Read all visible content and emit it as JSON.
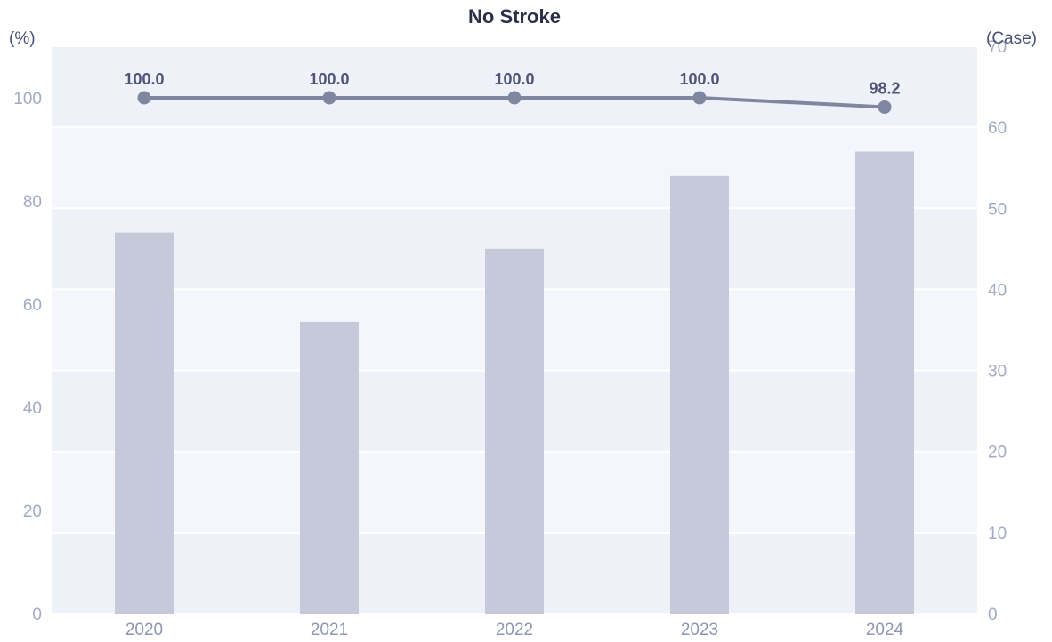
{
  "chart_data": {
    "type": "bar+line",
    "title": "No Stroke",
    "left_axis_unit": "(%)",
    "right_axis_unit": "(Case)",
    "categories": [
      "2020",
      "2021",
      "2022",
      "2023",
      "2024"
    ],
    "bars": {
      "axis": "right",
      "values": [
        47,
        36,
        45,
        54,
        57
      ],
      "color": "#c6c9d9"
    },
    "line": {
      "axis": "left",
      "values": [
        100.0,
        100.0,
        100.0,
        100.0,
        98.2
      ],
      "labels": [
        "100.0",
        "100.0",
        "100.0",
        "100.0",
        "98.2"
      ],
      "color": "#7e879f"
    },
    "left_axis": {
      "min": 0,
      "max": 110,
      "ticks": [
        "0",
        "20",
        "40",
        "60",
        "80",
        "100"
      ],
      "tick_values": [
        0,
        20,
        40,
        60,
        80,
        100
      ]
    },
    "right_axis": {
      "min": 0,
      "max": 70,
      "ticks": [
        "0",
        "10",
        "20",
        "30",
        "40",
        "50",
        "60",
        "70"
      ],
      "tick_values": [
        0,
        10,
        20,
        30,
        40,
        50,
        60,
        70
      ]
    },
    "grid": true,
    "band_colors": [
      "#eef1f7",
      "#f5f6fb"
    ]
  }
}
